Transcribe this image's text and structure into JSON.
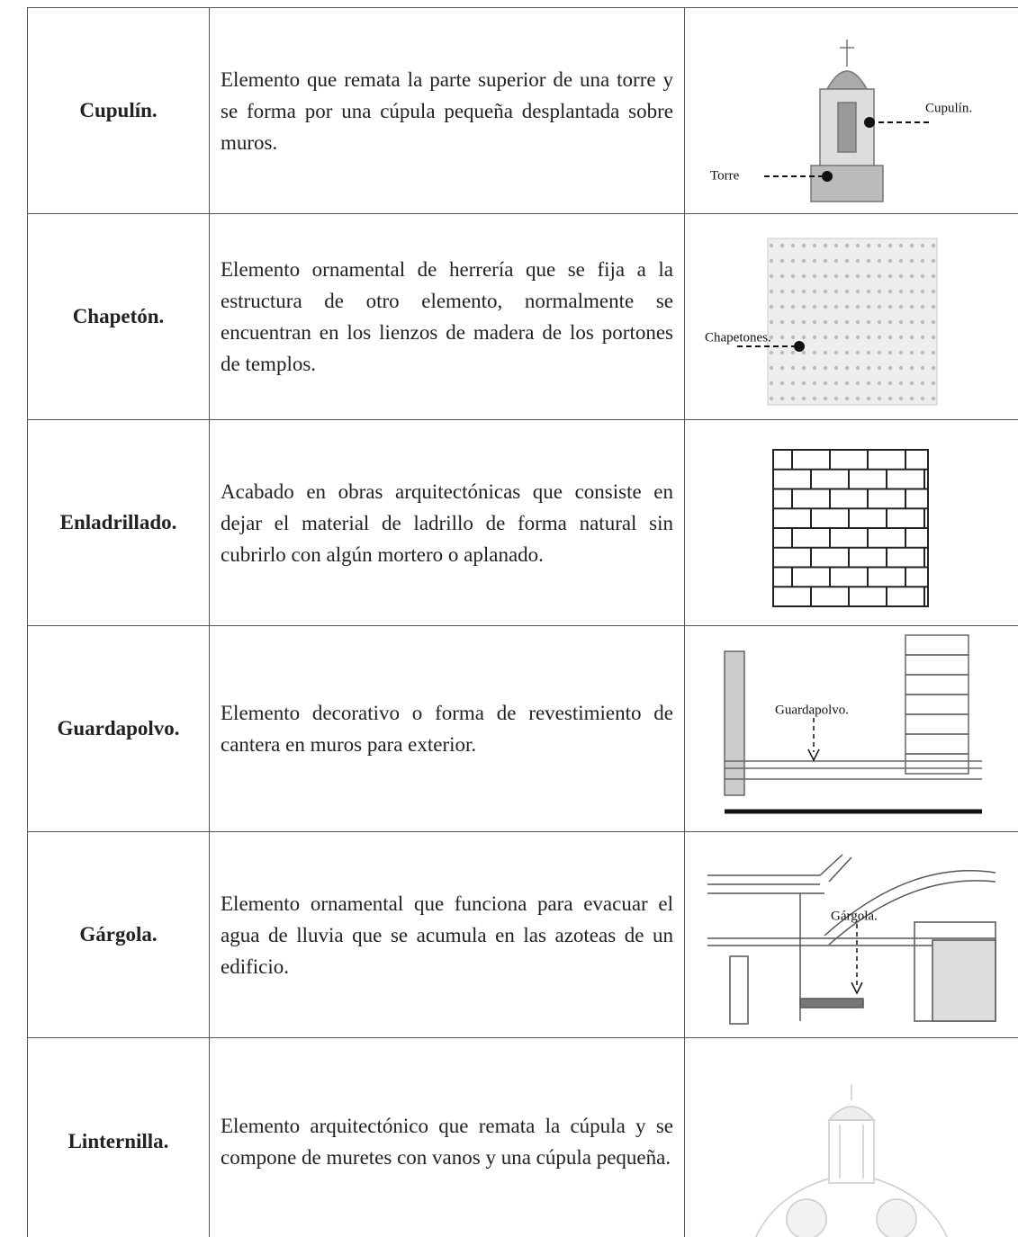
{
  "table": {
    "rows": [
      {
        "term": "Cupulín.",
        "definition": "Elemento que remata la parte superior de una torre y se forma por una cúpula pequeña desplantada sobre muros.",
        "image_labels": [
          "Cupulín.",
          "Torre"
        ]
      },
      {
        "term": "Chapetón.",
        "definition": "Elemento ornamental de herrería que se fija a la estructura de otro elemento, normalmente se encuentran en los lienzos de madera de los portones de templos.",
        "image_labels": [
          "Chapetones."
        ]
      },
      {
        "term": "Enladrillado.",
        "definition": "Acabado en obras arquitectónicas que consiste en dejar el material de ladrillo de forma natural sin cubrirlo con algún mortero o aplanado.",
        "image_labels": []
      },
      {
        "term": "Guardapolvo.",
        "definition": "Elemento decorativo o forma de revestimiento de cantera en muros para exterior.",
        "image_labels": [
          "Guardapolvo."
        ]
      },
      {
        "term": "Gárgola.",
        "definition": "Elemento ornamental que funciona para evacuar el agua de lluvia que se acumula en las azoteas de un edificio.",
        "image_labels": [
          "Gárgola."
        ]
      },
      {
        "term": "Linternilla.",
        "definition": "Elemento arquitectónico que remata la cúpula y se compone de muretes con vanos y una cúpula pequeña.",
        "image_labels": []
      }
    ]
  }
}
